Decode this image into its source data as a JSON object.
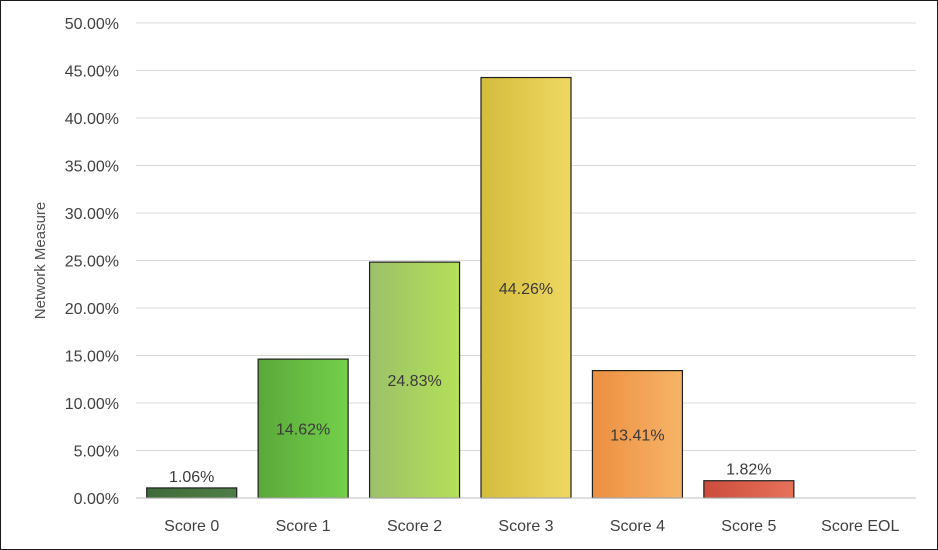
{
  "chart_data": {
    "type": "bar",
    "title": "",
    "xlabel": "",
    "ylabel": "Network Measure",
    "categories": [
      "Score 0",
      "Score 1",
      "Score 2",
      "Score 3",
      "Score 4",
      "Score 5",
      "Score EOL"
    ],
    "values": [
      1.06,
      14.62,
      24.83,
      44.26,
      13.41,
      1.82,
      0
    ],
    "data_labels": [
      "1.06%",
      "14.62%",
      "24.83%",
      "44.26%",
      "13.41%",
      "1.82%",
      ""
    ],
    "ylim": [
      0,
      50
    ],
    "yticks": [
      0,
      5,
      10,
      15,
      20,
      25,
      30,
      35,
      40,
      45,
      50
    ],
    "ytick_labels": [
      "0.00%",
      "5.00%",
      "10.00%",
      "15.00%",
      "20.00%",
      "25.00%",
      "30.00%",
      "35.00%",
      "40.00%",
      "45.00%",
      "50.00%"
    ],
    "grid": true,
    "legend": "none",
    "bar_colors": [
      [
        "#3f6b3a",
        "#4f7d48"
      ],
      [
        "#5aa83a",
        "#74d04a"
      ],
      [
        "#9cc06a",
        "#b4e058"
      ],
      [
        "#d4bc3c",
        "#efd862"
      ],
      [
        "#ec8f40",
        "#f7b468"
      ],
      [
        "#cc4d3c",
        "#e6725a"
      ]
    ]
  }
}
